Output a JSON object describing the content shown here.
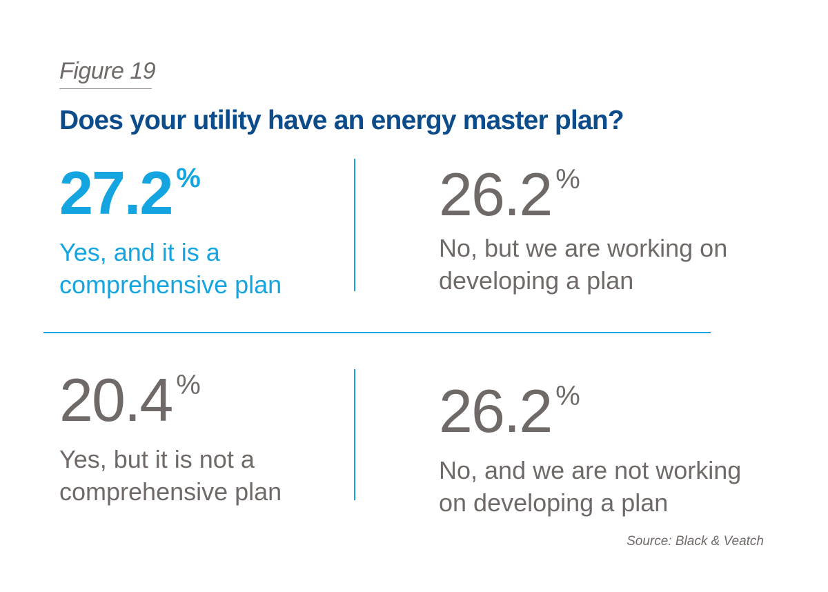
{
  "figure_label": "Figure 19",
  "source": "Source: Black & Veatch",
  "colors": {
    "title": "#0d4c8b",
    "accent": "#14a5e1",
    "muted": "#6f6a67"
  },
  "chart_data": {
    "type": "table",
    "title": "Does your utility have an energy master plan?",
    "unit": "%",
    "rows": [
      {
        "value": "27.2",
        "label_line1": "Yes, and it is a",
        "label_line2": "comprehensive plan",
        "highlighted": true
      },
      {
        "value": "26.2",
        "label_line1": "No, but we are working on",
        "label_line2": "developing a plan",
        "highlighted": false
      },
      {
        "value": "20.4",
        "label_line1": "Yes, but it is not a",
        "label_line2": "comprehensive plan",
        "highlighted": false
      },
      {
        "value": "26.2",
        "label_line1": "No, and we are not working",
        "label_line2": "on developing a plan",
        "highlighted": false
      }
    ]
  }
}
